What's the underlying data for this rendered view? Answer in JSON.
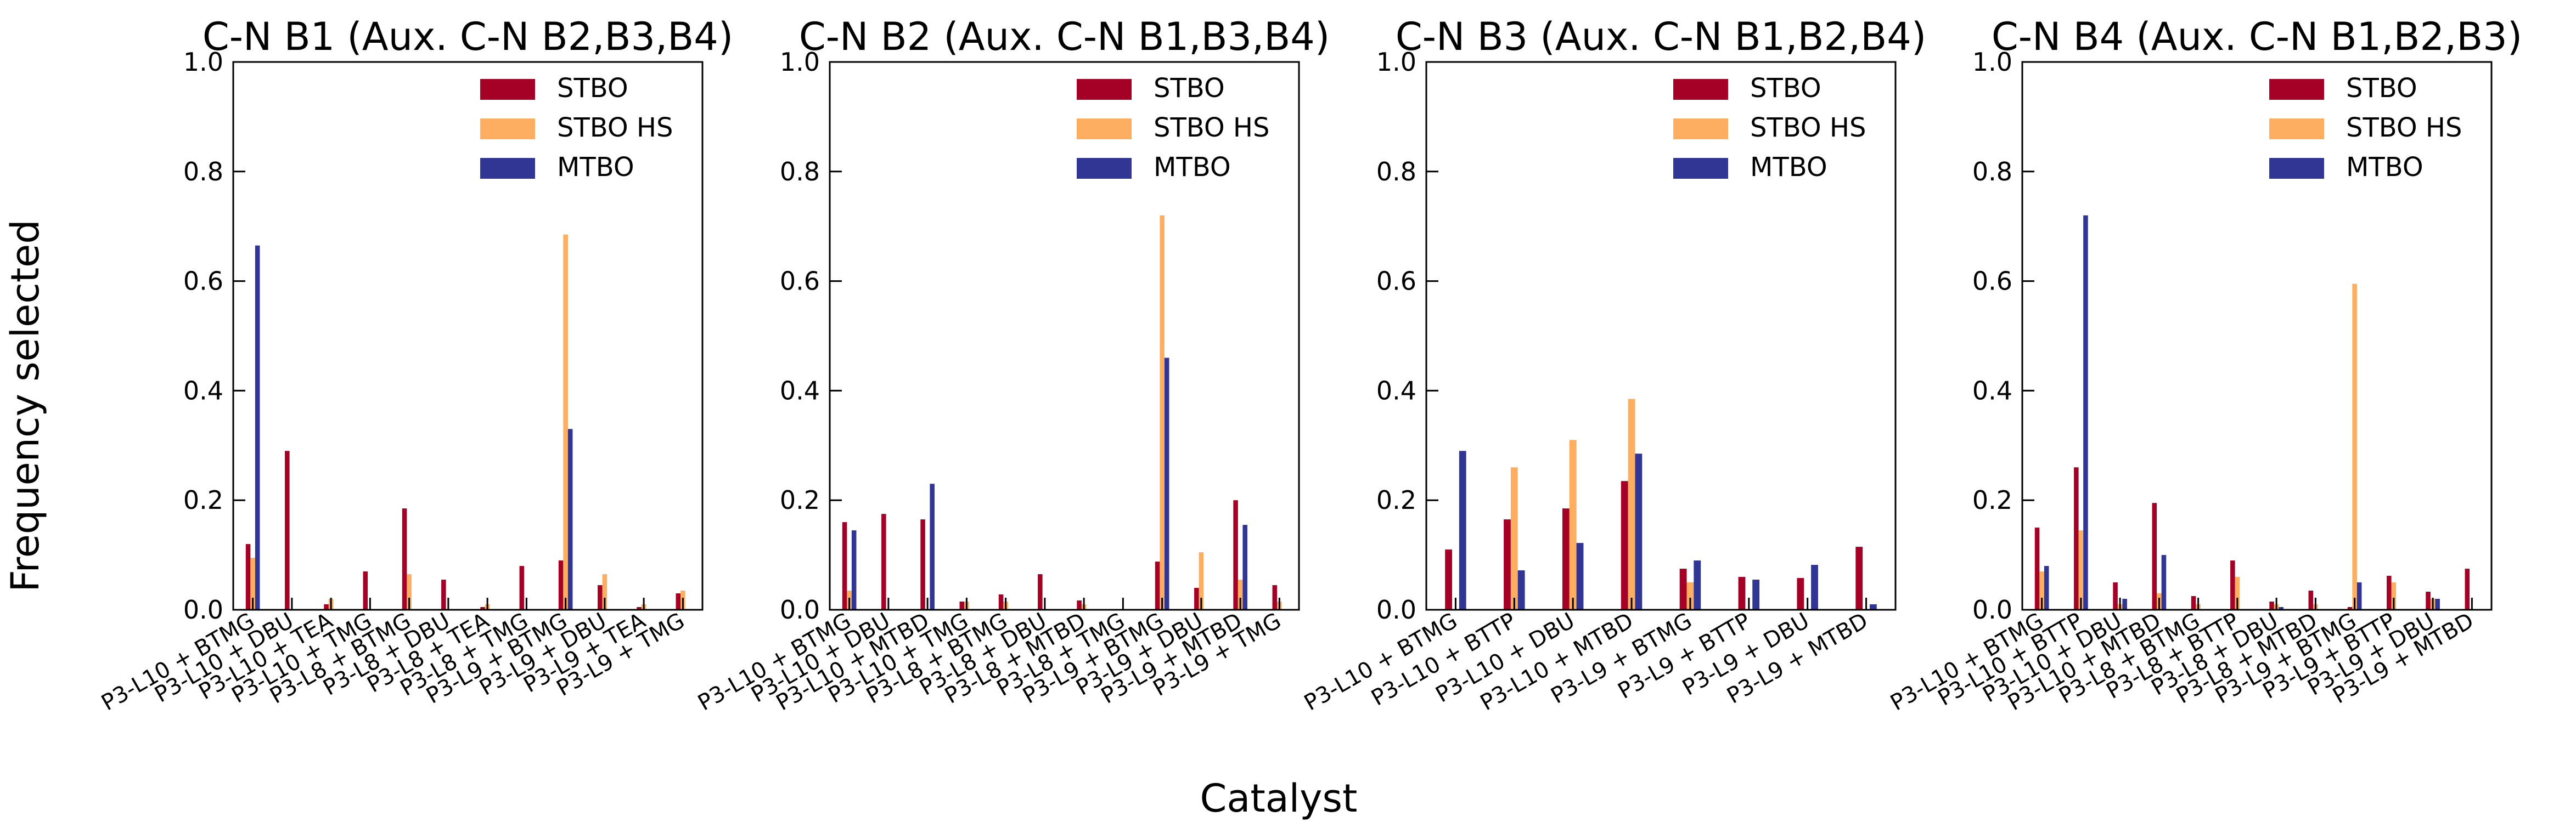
{
  "figure": {
    "ylabel": "Frequency selected",
    "xlabel": "Catalyst"
  },
  "legend_colors": {
    "STBO": "#a50026",
    "STBO HS": "#fdae61",
    "MTBO": "#313695"
  },
  "chart_data": [
    {
      "type": "bar",
      "title": "C-N B1 (Aux. C-N B2,B3,B4)",
      "ylim": [
        0,
        1.0
      ],
      "yticks": [
        "0.0",
        "0.2",
        "0.4",
        "0.6",
        "0.8",
        "1.0"
      ],
      "grid": false,
      "legend_position": "top-right",
      "categories": [
        "P3-L10 + BTMG",
        "P3-L10 + DBU",
        "P3-L10 + TEA",
        "P3-L10 + TMG",
        "P3-L8 + BTMG",
        "P3-L8 + DBU",
        "P3-L8 + TEA",
        "P3-L8 + TMG",
        "P3-L9 + BTMG",
        "P3-L9 + DBU",
        "P3-L9 + TEA",
        "P3-L9 + TMG"
      ],
      "series": [
        {
          "name": "STBO",
          "color": "#a50026",
          "values": [
            0.12,
            0.29,
            0.01,
            0.07,
            0.185,
            0.055,
            0.005,
            0.08,
            0.09,
            0.045,
            0.005,
            0.03
          ]
        },
        {
          "name": "STBO HS",
          "color": "#fdae61",
          "values": [
            0.095,
            0.0,
            0.02,
            0.0,
            0.065,
            0.0,
            0.01,
            0.0,
            0.685,
            0.065,
            0.01,
            0.035
          ]
        },
        {
          "name": "MTBO",
          "color": "#313695",
          "values": [
            0.665,
            0.0,
            0.0,
            0.0,
            0.0,
            0.0,
            0.0,
            0.0,
            0.33,
            0.0,
            0.0,
            0.0
          ]
        }
      ]
    },
    {
      "type": "bar",
      "title": "C-N B2 (Aux. C-N B1,B3,B4)",
      "ylim": [
        0,
        1.0
      ],
      "yticks": [
        "0.0",
        "0.2",
        "0.4",
        "0.6",
        "0.8",
        "1.0"
      ],
      "grid": false,
      "legend_position": "top-right",
      "categories": [
        "P3-L10 + BTMG",
        "P3-L10 + DBU",
        "P3-L10 + MTBD",
        "P3-L10 + TMG",
        "P3-L8 + BTMG",
        "P3-L8 + DBU",
        "P3-L8 + MTBD",
        "P3-L8 + TMG",
        "P3-L9 + BTMG",
        "P3-L9 + DBU",
        "P3-L9 + MTBD",
        "P3-L9 + TMG"
      ],
      "series": [
        {
          "name": "STBO",
          "color": "#a50026",
          "values": [
            0.16,
            0.175,
            0.165,
            0.015,
            0.028,
            0.065,
            0.017,
            0.0,
            0.088,
            0.04,
            0.2,
            0.045
          ]
        },
        {
          "name": "STBO HS",
          "color": "#fdae61",
          "values": [
            0.035,
            0.0,
            0.0,
            0.015,
            0.015,
            0.0,
            0.01,
            0.0,
            0.72,
            0.105,
            0.055,
            0.015
          ]
        },
        {
          "name": "MTBO",
          "color": "#313695",
          "values": [
            0.145,
            0.0,
            0.23,
            0.0,
            0.0,
            0.0,
            0.0,
            0.0,
            0.46,
            0.0,
            0.155,
            0.0
          ]
        }
      ]
    },
    {
      "type": "bar",
      "title": "C-N B3 (Aux. C-N B1,B2,B4)",
      "ylim": [
        0,
        1.0
      ],
      "yticks": [
        "0.0",
        "0.2",
        "0.4",
        "0.6",
        "0.8",
        "1.0"
      ],
      "grid": false,
      "legend_position": "top-right",
      "categories": [
        "P3-L10 + BTMG",
        "P3-L10 + BTTP",
        "P3-L10 + DBU",
        "P3-L10 + MTBD",
        "P3-L9 + BTMG",
        "P3-L9 + BTTP",
        "P3-L9 + DBU",
        "P3-L9 + MTBD"
      ],
      "series": [
        {
          "name": "STBO",
          "color": "#a50026",
          "values": [
            0.11,
            0.165,
            0.185,
            0.235,
            0.075,
            0.06,
            0.058,
            0.115
          ]
        },
        {
          "name": "STBO HS",
          "color": "#fdae61",
          "values": [
            0.0,
            0.26,
            0.31,
            0.385,
            0.05,
            0.0,
            0.0,
            0.0
          ]
        },
        {
          "name": "MTBO",
          "color": "#313695",
          "values": [
            0.29,
            0.072,
            0.122,
            0.285,
            0.09,
            0.055,
            0.082,
            0.01
          ]
        }
      ]
    },
    {
      "type": "bar",
      "title": "C-N B4 (Aux. C-N B1,B2,B3)",
      "ylim": [
        0,
        1.0
      ],
      "yticks": [
        "0.0",
        "0.2",
        "0.4",
        "0.6",
        "0.8",
        "1.0"
      ],
      "grid": false,
      "legend_position": "top-right",
      "categories": [
        "P3-L10 + BTMG",
        "P3-L10 + BTTP",
        "P3-L10 + DBU",
        "P3-L10 + MTBD",
        "P3-L8 + BTMG",
        "P3-L8 + BTTP",
        "P3-L8 + DBU",
        "P3-L8 + MTBD",
        "P3-L9 + BTMG",
        "P3-L9 + BTTP",
        "P3-L9 + DBU",
        "P3-L9 + MTBD"
      ],
      "series": [
        {
          "name": "STBO",
          "color": "#a50026",
          "values": [
            0.15,
            0.26,
            0.05,
            0.195,
            0.025,
            0.09,
            0.015,
            0.035,
            0.005,
            0.062,
            0.033,
            0.075
          ]
        },
        {
          "name": "STBO HS",
          "color": "#fdae61",
          "values": [
            0.07,
            0.145,
            0.01,
            0.03,
            0.01,
            0.06,
            0.01,
            0.01,
            0.595,
            0.05,
            0.02,
            0.0
          ]
        },
        {
          "name": "MTBO",
          "color": "#313695",
          "values": [
            0.08,
            0.72,
            0.02,
            0.1,
            0.0,
            0.0,
            0.005,
            0.0,
            0.05,
            0.0,
            0.02,
            0.0
          ]
        }
      ]
    }
  ]
}
